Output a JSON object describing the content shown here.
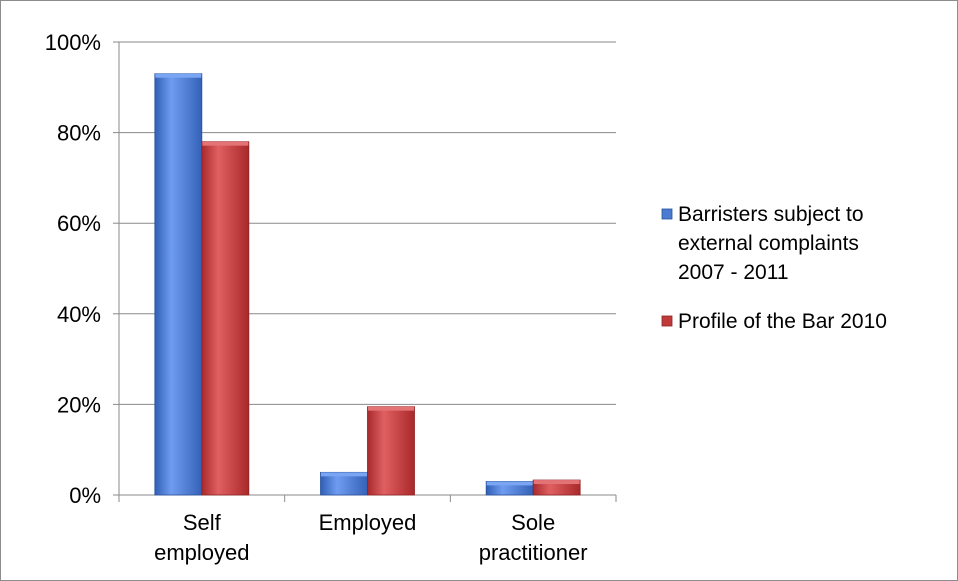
{
  "chart_data": {
    "type": "bar",
    "categories": [
      "Self\nemployed",
      "Employed",
      "Sole\npractitioner"
    ],
    "series": [
      {
        "name": "Barristers subject to\nexternal complaints\n2007 - 2011",
        "values": [
          93,
          5,
          3
        ],
        "color": "#4a7bd0"
      },
      {
        "name": "Profile of the Bar 2010",
        "values": [
          78,
          19.5,
          3.3
        ],
        "color": "#c0393b"
      }
    ],
    "ylim": [
      0,
      100
    ],
    "yticks": [
      "0%",
      "20%",
      "40%",
      "60%",
      "80%",
      "100%"
    ],
    "ytick_values": [
      0,
      20,
      40,
      60,
      80,
      100
    ],
    "grid": true,
    "legend_placement": "right"
  }
}
